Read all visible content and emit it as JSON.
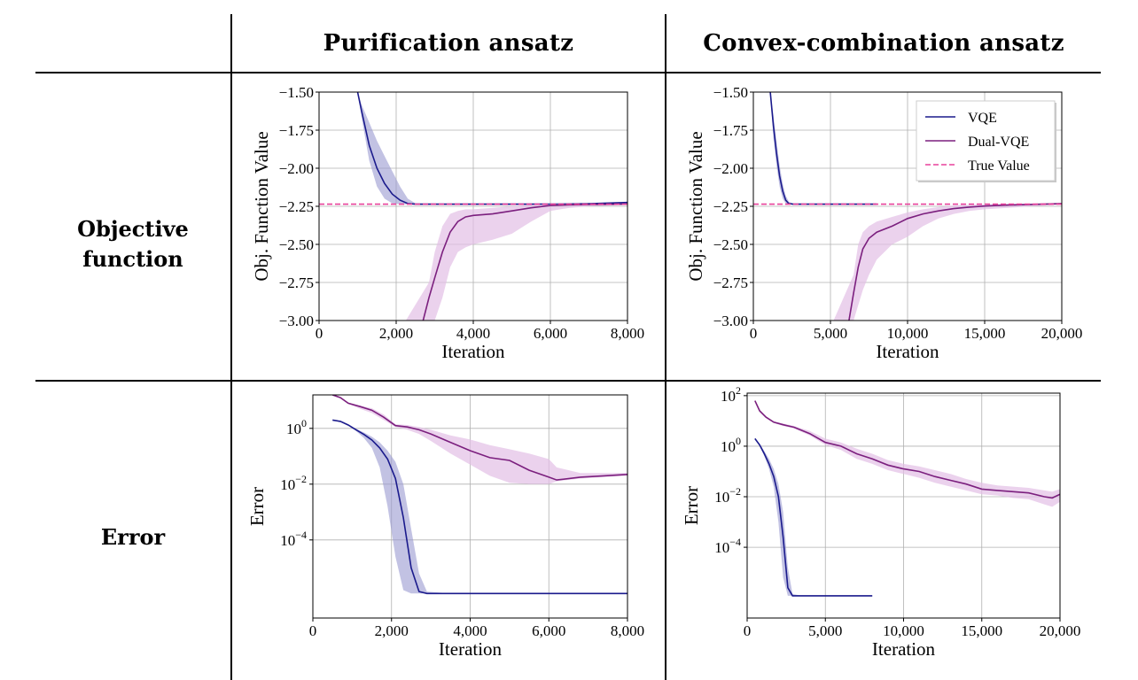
{
  "table": {
    "col_headers": [
      "Purification ansatz",
      "Convex-combination ansatz"
    ],
    "row_headers": [
      [
        "Objective",
        "function"
      ],
      [
        "Error"
      ]
    ]
  },
  "legend": {
    "entries": [
      {
        "label": "VQE",
        "color": "#1a1a8c",
        "style": "solid"
      },
      {
        "label": "Dual-VQE",
        "color": "#7b1f7e",
        "style": "solid"
      },
      {
        "label": "True Value",
        "color": "#e8419b",
        "style": "dashed"
      }
    ]
  },
  "colors": {
    "vqe": "#1a1a8c",
    "dual": "#7b1f7e",
    "true": "#e8419b",
    "vqe_band": "#9a9ad0",
    "dual_band": "#e3bfe6"
  },
  "chart_data": [
    {
      "id": "obj-purification",
      "type": "line",
      "xlabel": "Iteration",
      "ylabel": "Obj. Function Value",
      "xlim": [
        0,
        8000
      ],
      "ylim": [
        -3.0,
        -1.5
      ],
      "xticks": [
        0,
        2000,
        4000,
        6000,
        8000
      ],
      "xtick_labels": [
        "0",
        "2,000",
        "4,000",
        "6,000",
        "8,000"
      ],
      "yticks": [
        -1.5,
        -1.75,
        -2.0,
        -2.25,
        -2.5,
        -2.75,
        -3.0
      ],
      "ytick_labels": [
        "−1.50",
        "−1.75",
        "−2.00",
        "−2.25",
        "−2.50",
        "−2.75",
        "−3.00"
      ],
      "grid": true,
      "legend": false,
      "true_value": -2.236,
      "series": [
        {
          "name": "VQE",
          "key": "vqe",
          "x": [
            1000,
            1100,
            1300,
            1500,
            1700,
            1900,
            2100,
            2300,
            2500,
            3000,
            4000,
            5000,
            6000,
            7000,
            8000
          ],
          "y": [
            -1.5,
            -1.62,
            -1.85,
            -2.0,
            -2.1,
            -2.17,
            -2.21,
            -2.232,
            -2.236,
            -2.236,
            -2.236,
            -2.236,
            -2.236,
            -2.233,
            -2.225
          ],
          "band_low": [
            -1.5,
            -1.58,
            -1.7,
            -1.82,
            -1.92,
            -2.02,
            -2.12,
            -2.2,
            -2.23,
            -2.236,
            -2.236,
            -2.236,
            -2.236,
            -2.236,
            -2.236
          ],
          "band_high": [
            -1.5,
            -1.66,
            -1.95,
            -2.12,
            -2.2,
            -2.23,
            -2.236,
            -2.238,
            -2.238,
            -2.236,
            -2.236,
            -2.236,
            -2.236,
            -2.23,
            -2.22
          ]
        },
        {
          "name": "Dual-VQE",
          "key": "dual",
          "x": [
            2700,
            2850,
            3000,
            3200,
            3400,
            3600,
            3800,
            4000,
            4500,
            5000,
            5500,
            6000,
            6500,
            7000,
            7500,
            8000
          ],
          "y": [
            -3.0,
            -2.85,
            -2.72,
            -2.55,
            -2.42,
            -2.35,
            -2.32,
            -2.31,
            -2.3,
            -2.28,
            -2.26,
            -2.245,
            -2.24,
            -2.238,
            -2.237,
            -2.236
          ],
          "band_low": [
            -3.0,
            -3.0,
            -3.0,
            -2.85,
            -2.65,
            -2.55,
            -2.52,
            -2.5,
            -2.47,
            -2.43,
            -2.35,
            -2.28,
            -2.26,
            -2.25,
            -2.245,
            -2.24
          ],
          "band_high": [
            -3.0,
            -2.75,
            -2.55,
            -2.38,
            -2.3,
            -2.28,
            -2.27,
            -2.27,
            -2.26,
            -2.25,
            -2.24,
            -2.236,
            -2.234,
            -2.233,
            -2.233,
            -2.233
          ],
          "band_x_start": 2250
        }
      ]
    },
    {
      "id": "obj-convex",
      "type": "line",
      "xlabel": "Iteration",
      "ylabel": "Obj. Function Value",
      "xlim": [
        0,
        20000
      ],
      "ylim": [
        -3.0,
        -1.5
      ],
      "xticks": [
        0,
        5000,
        10000,
        15000,
        20000
      ],
      "xtick_labels": [
        "0",
        "5,000",
        "10,000",
        "15,000",
        "20,000"
      ],
      "yticks": [
        -1.5,
        -1.75,
        -2.0,
        -2.25,
        -2.5,
        -2.75,
        -3.0
      ],
      "ytick_labels": [
        "−1.50",
        "−1.75",
        "−2.00",
        "−2.25",
        "−2.50",
        "−2.75",
        "−3.00"
      ],
      "grid": true,
      "legend": "top-right",
      "true_value": -2.236,
      "series": [
        {
          "name": "VQE",
          "key": "vqe",
          "x": [
            1100,
            1300,
            1500,
            1700,
            1900,
            2100,
            2300,
            2600,
            3000,
            5000,
            8000
          ],
          "y": [
            -1.5,
            -1.72,
            -1.9,
            -2.05,
            -2.15,
            -2.21,
            -2.232,
            -2.236,
            -2.236,
            -2.236,
            -2.236
          ],
          "band_low": [
            -1.5,
            -1.65,
            -1.82,
            -1.98,
            -2.1,
            -2.18,
            -2.22,
            -2.234,
            -2.236,
            -2.236,
            -2.236
          ],
          "band_high": [
            -1.5,
            -1.8,
            -1.98,
            -2.12,
            -2.2,
            -2.23,
            -2.236,
            -2.237,
            -2.236,
            -2.236,
            -2.236
          ]
        },
        {
          "name": "Dual-VQE",
          "key": "dual",
          "x": [
            6200,
            6500,
            6800,
            7100,
            7500,
            8000,
            9000,
            10000,
            11000,
            12000,
            13000,
            14000,
            15000,
            16500,
            18000,
            20000
          ],
          "y": [
            -3.0,
            -2.82,
            -2.65,
            -2.53,
            -2.46,
            -2.42,
            -2.38,
            -2.33,
            -2.3,
            -2.28,
            -2.265,
            -2.255,
            -2.248,
            -2.242,
            -2.238,
            -2.232
          ],
          "band_low": [
            -3.0,
            -3.0,
            -2.9,
            -2.8,
            -2.7,
            -2.6,
            -2.5,
            -2.45,
            -2.38,
            -2.33,
            -2.3,
            -2.28,
            -2.27,
            -2.26,
            -2.25,
            -2.24
          ],
          "band_high": [
            -3.0,
            -2.7,
            -2.5,
            -2.42,
            -2.38,
            -2.35,
            -2.32,
            -2.29,
            -2.27,
            -2.255,
            -2.245,
            -2.24,
            -2.236,
            -2.234,
            -2.232,
            -2.228
          ],
          "band_x_start": 5200
        }
      ]
    },
    {
      "id": "err-purification",
      "type": "line",
      "xlabel": "Iteration",
      "ylabel": "Error",
      "yscale": "log",
      "xlim": [
        0,
        8000
      ],
      "ylim_log10": [
        -6.8,
        1.2
      ],
      "xticks": [
        0,
        2000,
        4000,
        6000,
        8000
      ],
      "xtick_labels": [
        "0",
        "2,000",
        "4,000",
        "6,000",
        "8,000"
      ],
      "yticks_log10": [
        0,
        -2,
        -4
      ],
      "ytick_labels": [
        "10",
        "10",
        "10"
      ],
      "ytick_exponents": [
        "0",
        "−2",
        "−4"
      ],
      "grid": true,
      "legend": false,
      "series": [
        {
          "name": "VQE",
          "key": "vqe",
          "x_values": [
            500,
            700,
            900,
            1100,
            1300,
            1500,
            1700,
            1900,
            2100,
            2300,
            2500,
            2700,
            2900,
            3500,
            5000,
            6500,
            8000
          ],
          "log10_y": [
            0.3,
            0.25,
            0.12,
            -0.05,
            -0.22,
            -0.42,
            -0.7,
            -1.1,
            -1.8,
            -3.2,
            -5.0,
            -5.85,
            -5.92,
            -5.92,
            -5.92,
            -5.92,
            -5.92
          ],
          "band_log10_low": [
            0.3,
            0.25,
            0.1,
            -0.1,
            -0.35,
            -0.7,
            -1.4,
            -2.8,
            -4.6,
            -5.8,
            -5.92,
            -5.92,
            -5.92,
            -5.92,
            -5.92,
            -5.92,
            -5.92
          ],
          "band_log10_high": [
            0.3,
            0.25,
            0.12,
            -0.02,
            -0.15,
            -0.3,
            -0.5,
            -0.8,
            -1.2,
            -2.0,
            -3.6,
            -5.2,
            -5.85,
            -5.92,
            -5.92,
            -5.92,
            -5.92
          ]
        },
        {
          "name": "Dual-VQE",
          "key": "dual",
          "x_values": [
            500,
            700,
            900,
            1200,
            1500,
            1800,
            2100,
            2400,
            2700,
            3000,
            3500,
            4000,
            4500,
            5000,
            5500,
            6000,
            6200,
            6800,
            7400,
            8000
          ],
          "log10_y": [
            1.5,
            1.1,
            0.9,
            0.78,
            0.65,
            0.4,
            0.1,
            0.05,
            -0.05,
            -0.2,
            -0.5,
            -0.8,
            -1.05,
            -1.15,
            -1.5,
            -1.75,
            -1.85,
            -1.75,
            -1.7,
            -1.65
          ],
          "band_log10_low": [
            1.5,
            1.1,
            0.88,
            0.7,
            0.55,
            0.3,
            0.05,
            -0.05,
            -0.2,
            -0.45,
            -0.9,
            -1.3,
            -1.7,
            -1.95,
            -2.0,
            -2.0,
            -1.9,
            -1.8,
            -1.75,
            -1.7
          ],
          "band_log10_high": [
            1.5,
            1.1,
            0.92,
            0.82,
            0.72,
            0.5,
            0.15,
            0.12,
            0.05,
            -0.05,
            -0.25,
            -0.4,
            -0.6,
            -0.75,
            -0.9,
            -1.1,
            -1.4,
            -1.6,
            -1.6,
            -1.6
          ]
        }
      ]
    },
    {
      "id": "err-convex",
      "type": "line",
      "xlabel": "Iteration",
      "ylabel": "Error",
      "yscale": "log",
      "xlim": [
        0,
        20000
      ],
      "ylim_log10": [
        -6.8,
        2.1
      ],
      "xticks": [
        0,
        5000,
        10000,
        15000,
        20000
      ],
      "xtick_labels": [
        "0",
        "5,000",
        "10,000",
        "15,000",
        "20,000"
      ],
      "yticks_log10": [
        2,
        0,
        -2,
        -4
      ],
      "ytick_labels": [
        "10",
        "10",
        "10",
        "10"
      ],
      "ytick_exponents": [
        "2",
        "0",
        "−2",
        "−4"
      ],
      "grid": true,
      "legend": false,
      "series": [
        {
          "name": "VQE",
          "key": "vqe",
          "x_values": [
            500,
            800,
            1100,
            1400,
            1700,
            2000,
            2300,
            2600,
            2900,
            3500,
            5000,
            6500,
            8000
          ],
          "log10_y": [
            0.3,
            0.05,
            -0.3,
            -0.7,
            -1.2,
            -2.0,
            -3.6,
            -5.6,
            -5.92,
            -5.92,
            -5.92,
            -5.92,
            -5.92
          ],
          "band_log10_low": [
            0.3,
            0.0,
            -0.4,
            -0.9,
            -1.6,
            -3.0,
            -5.2,
            -5.92,
            -5.92,
            -5.92,
            -5.92,
            -5.92,
            -5.92
          ],
          "band_log10_high": [
            0.3,
            0.1,
            -0.2,
            -0.5,
            -0.9,
            -1.5,
            -2.6,
            -4.8,
            -5.85,
            -5.92,
            -5.92,
            -5.92,
            -5.92
          ]
        },
        {
          "name": "Dual-VQE",
          "key": "dual",
          "x_values": [
            500,
            800,
            1200,
            1700,
            2300,
            3000,
            4000,
            5000,
            6000,
            7000,
            8000,
            9000,
            10000,
            11000,
            12000,
            13000,
            14000,
            15000,
            16000,
            17000,
            18000,
            19000,
            19500,
            20000
          ],
          "log10_y": [
            1.8,
            1.4,
            1.15,
            0.95,
            0.85,
            0.75,
            0.5,
            0.15,
            0.0,
            -0.3,
            -0.5,
            -0.75,
            -0.9,
            -1.0,
            -1.2,
            -1.35,
            -1.5,
            -1.7,
            -1.75,
            -1.8,
            -1.85,
            -2.0,
            -2.05,
            -1.9
          ],
          "band_log10_low": [
            1.8,
            1.4,
            1.12,
            0.92,
            0.8,
            0.7,
            0.42,
            0.05,
            -0.15,
            -0.5,
            -0.7,
            -0.95,
            -1.1,
            -1.25,
            -1.45,
            -1.6,
            -1.75,
            -1.9,
            -1.95,
            -2.05,
            -2.1,
            -2.3,
            -2.4,
            -2.2
          ],
          "band_log10_high": [
            1.8,
            1.4,
            1.18,
            0.98,
            0.9,
            0.8,
            0.6,
            0.3,
            0.15,
            -0.1,
            -0.3,
            -0.55,
            -0.7,
            -0.8,
            -0.95,
            -1.1,
            -1.3,
            -1.45,
            -1.55,
            -1.6,
            -1.65,
            -1.75,
            -1.8,
            -1.7
          ]
        }
      ]
    }
  ]
}
